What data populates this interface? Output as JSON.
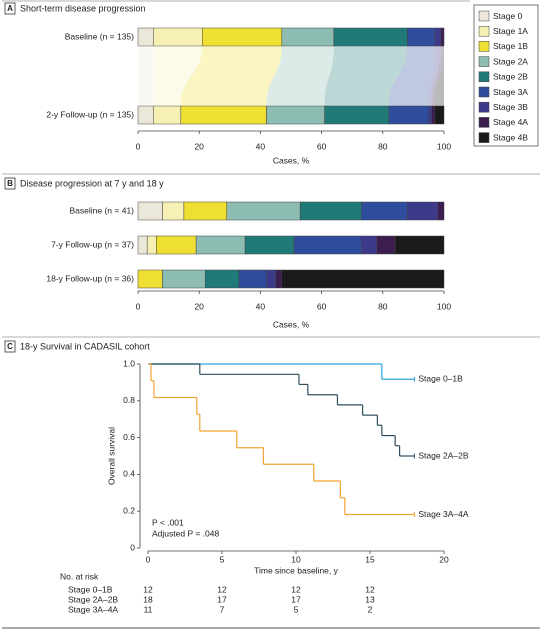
{
  "chart_data": [
    {
      "type": "stacked-bar",
      "panel": "A",
      "title": "Short-term disease progression",
      "categories": [
        "Baseline (n = 135)",
        "2-y Follow-up (n = 135)"
      ],
      "series": [
        {
          "name": "Stage 0",
          "color": "#ebe8da",
          "values": [
            5,
            5
          ]
        },
        {
          "name": "Stage 1A",
          "color": "#f6f0b4",
          "values": [
            16,
            9
          ]
        },
        {
          "name": "Stage 1B",
          "color": "#efdf32",
          "values": [
            26,
            28
          ]
        },
        {
          "name": "Stage 2A",
          "color": "#8dbcb2",
          "values": [
            17,
            19
          ]
        },
        {
          "name": "Stage 2B",
          "color": "#1f7a78",
          "values": [
            24,
            21
          ]
        },
        {
          "name": "Stage 3A",
          "color": "#2f4d9d",
          "values": [
            9,
            13
          ]
        },
        {
          "name": "Stage 3B",
          "color": "#3d3a8c",
          "values": [
            2,
            1
          ]
        },
        {
          "name": "Stage 4A",
          "color": "#3b1d50",
          "values": [
            1,
            1
          ]
        },
        {
          "name": "Stage 4B",
          "color": "#1a1a1a",
          "values": [
            0,
            3
          ]
        }
      ],
      "x_label": "Cases, %",
      "xlim": [
        0,
        100
      ],
      "xticks": [
        0,
        20,
        40,
        60,
        80,
        100
      ]
    },
    {
      "type": "stacked-bar",
      "panel": "B",
      "title": "Disease progression at 7 y and 18 y",
      "categories": [
        "Baseline (n = 41)",
        "7-y Follow-up (n = 37)",
        "18-y Follow-up (n = 36)"
      ],
      "series": [
        {
          "values": [
            8,
            3,
            0
          ]
        },
        {
          "values": [
            7,
            3,
            0
          ]
        },
        {
          "values": [
            14,
            13,
            8
          ]
        },
        {
          "values": [
            24,
            16,
            14
          ]
        },
        {
          "values": [
            20,
            16,
            11
          ]
        },
        {
          "values": [
            15,
            22,
            9
          ]
        },
        {
          "values": [
            10,
            5,
            3
          ]
        },
        {
          "values": [
            2,
            6,
            2
          ]
        },
        {
          "values": [
            0,
            16,
            53
          ]
        }
      ],
      "x_label": "Cases, %",
      "xlim": [
        0,
        100
      ],
      "xticks": [
        0,
        20,
        40,
        60,
        80,
        100
      ]
    },
    {
      "type": "line",
      "panel": "C",
      "title": "18-y Survival in CADASIL cohort",
      "x_label": "Time since baseline, y",
      "y_label": "Overall survival",
      "xlim": [
        0,
        20
      ],
      "xticks": [
        0,
        5,
        10,
        15,
        20
      ],
      "ylim": [
        0,
        1
      ],
      "yticks": [
        0,
        0.2,
        0.4,
        0.6,
        0.8,
        {
          "value": 1,
          "label": "1.0"
        }
      ],
      "series": [
        {
          "name": "Stage 0–1B",
          "color": "#2aa6dc",
          "x": [
            0,
            15.8,
            18
          ],
          "values": [
            1,
            0.917,
            0.917
          ]
        },
        {
          "name": "Stage 2A–2B",
          "color": "#2f4e5e",
          "x": [
            0,
            3.5,
            10.2,
            10.8,
            12.8,
            14.5,
            15.5,
            15.8,
            16.7,
            17,
            18
          ],
          "values": [
            1,
            0.944,
            0.889,
            0.833,
            0.778,
            0.722,
            0.667,
            0.611,
            0.556,
            0.5,
            0.5
          ]
        },
        {
          "name": "Stage 3A–4A",
          "color": "#f4a233",
          "x": [
            0,
            0.2,
            0.4,
            3.3,
            3.5,
            6,
            7.8,
            11.2,
            13,
            13.3,
            18
          ],
          "values": [
            1,
            0.909,
            0.818,
            0.727,
            0.636,
            0.545,
            0.455,
            0.364,
            0.273,
            0.182,
            0.182
          ]
        }
      ],
      "annotations": [
        "P < .001",
        "Adjusted P = .048"
      ],
      "risk_table": {
        "title": "No. at risk",
        "rows": [
          {
            "label": "Stage 0–1B",
            "values": [
              12,
              12,
              12,
              12
            ]
          },
          {
            "label": "Stage 2A–2B",
            "values": [
              18,
              17,
              17,
              13
            ]
          },
          {
            "label": "Stage 3A–4A",
            "values": [
              11,
              7,
              5,
              2
            ]
          }
        ]
      }
    }
  ]
}
